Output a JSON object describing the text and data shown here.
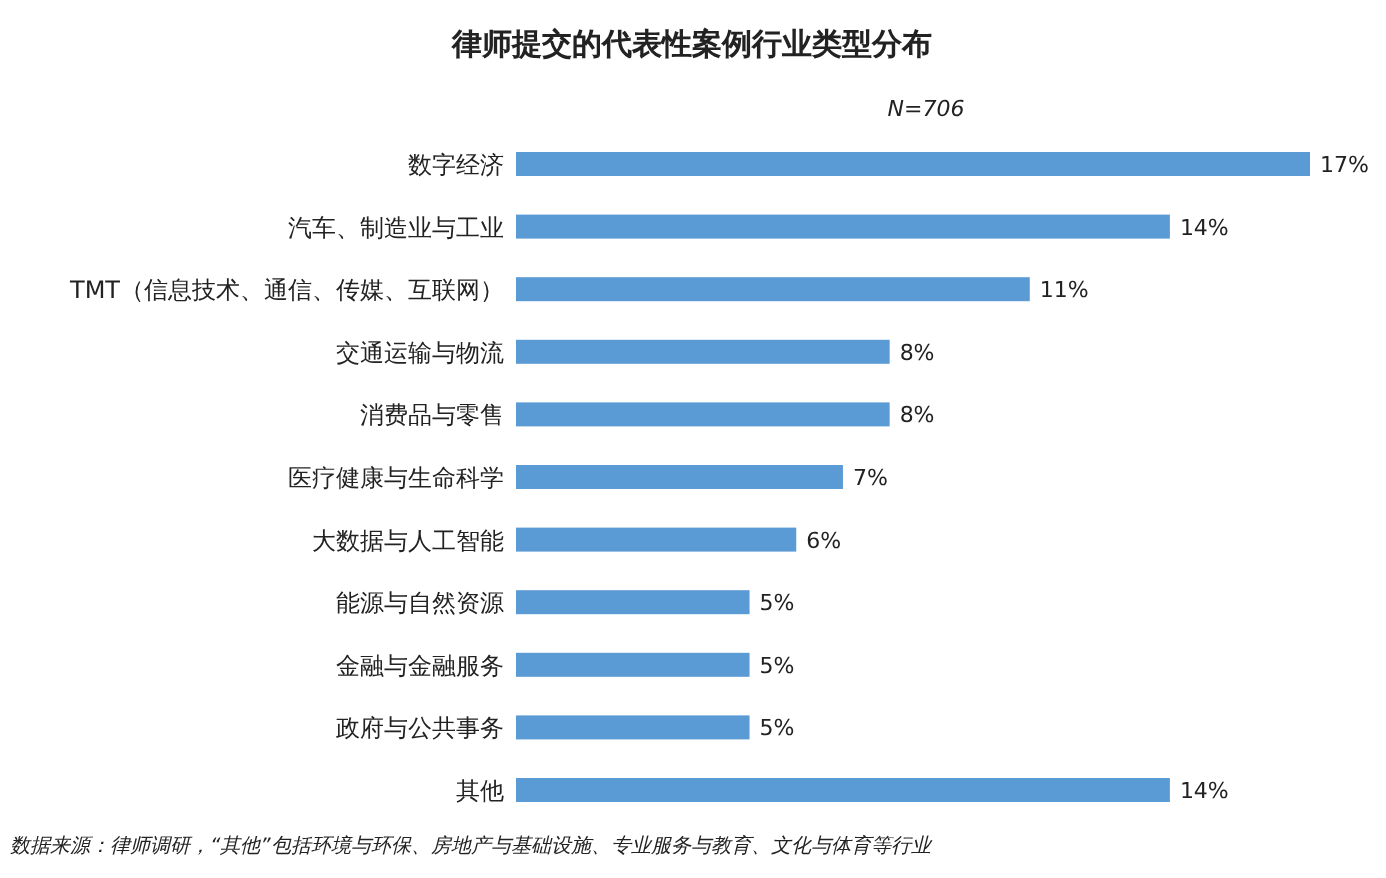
{
  "chart_data": {
    "type": "bar",
    "orientation": "horizontal",
    "title": "律师提交的代表性案例行业类型分布",
    "subtitle": "*N=706*",
    "categories": [
      "数字经济",
      "汽车、制造业与工业",
      "TMT（信息技术、通信、传媒、互联网）",
      "交通运输与物流",
      "消费品与零售",
      "医疗健康与生命科学",
      "大数据与人工智能",
      "能源与自然资源",
      "金融与金融服务",
      "政府与公共事务",
      "其他"
    ],
    "values": [
      17,
      14,
      11,
      8,
      8,
      7,
      6,
      5,
      5,
      5,
      14
    ],
    "value_labels": [
      "17%",
      "14%",
      "11%",
      "8%",
      "8%",
      "7%",
      "6%",
      "5%",
      "5%",
      "5%",
      "14%"
    ],
    "color": "#5b9bd5",
    "annotations": [
      "数据来源：律师调研，“其他”包括环境与环保、房地产与基础设施、专业服务与教育、文化与体育等行业"
    ]
  }
}
